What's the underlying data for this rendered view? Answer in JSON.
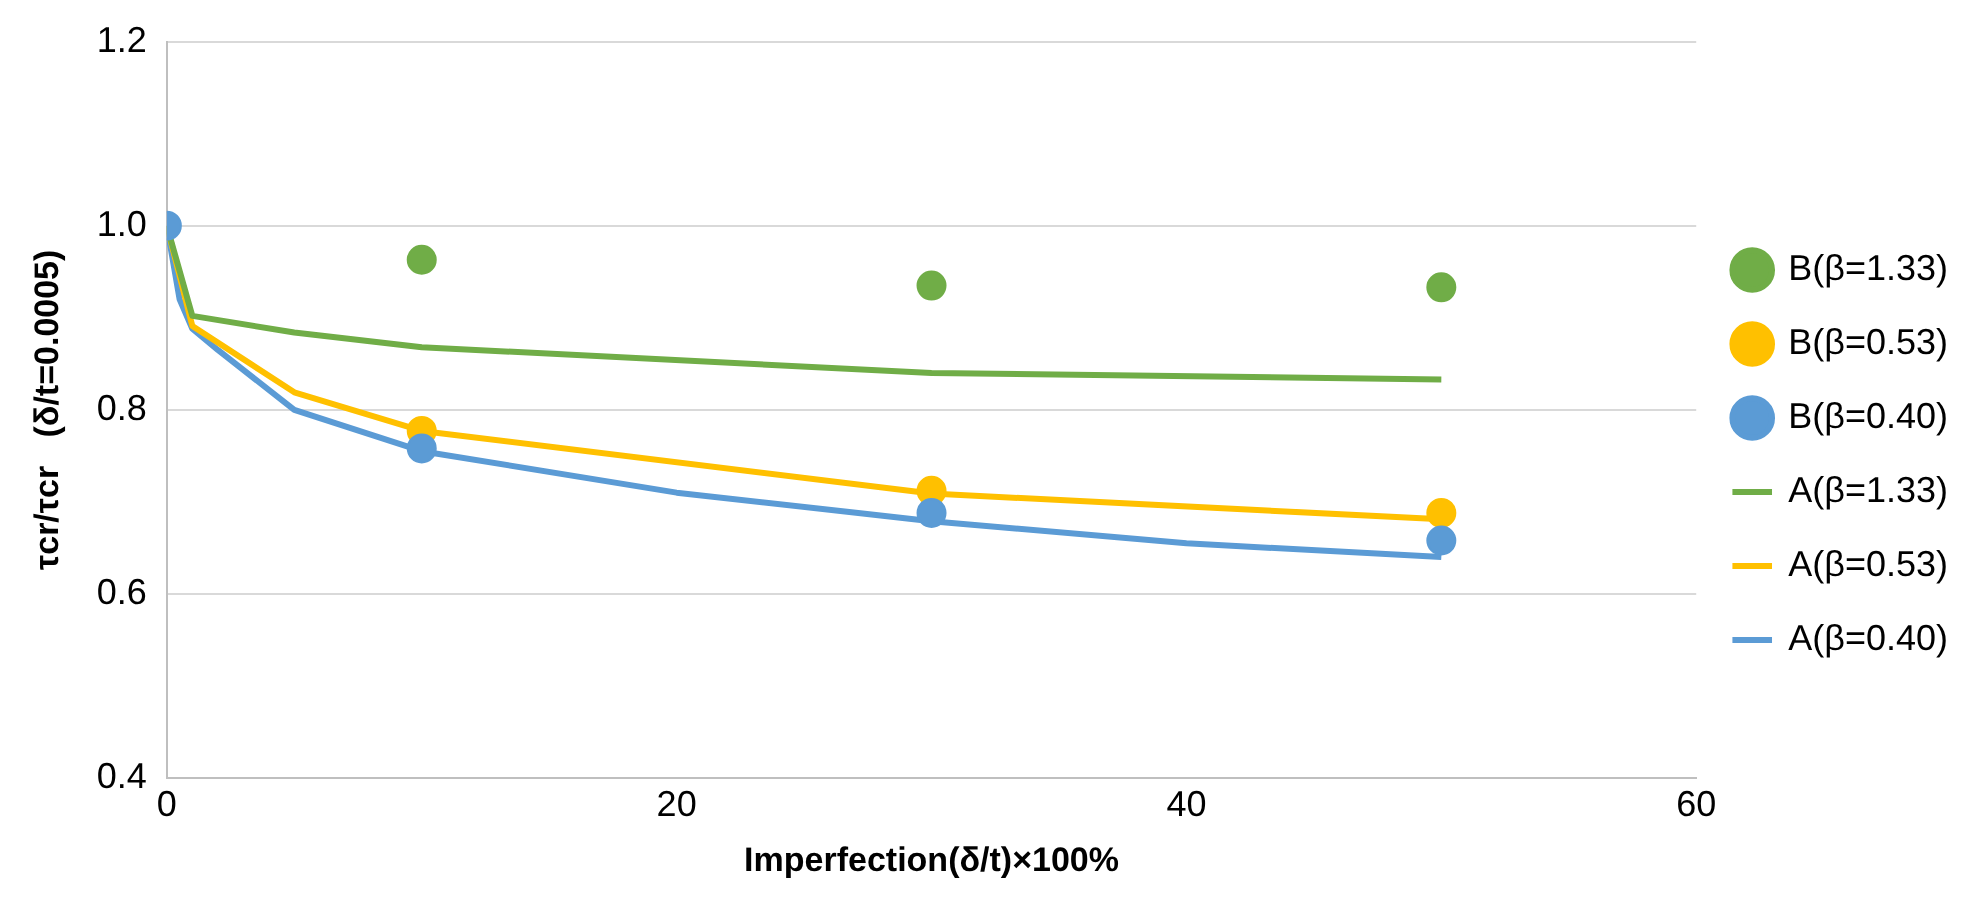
{
  "chart_data": {
    "type": "line",
    "xlabel": "Imperfection(δ/t)×100%",
    "ylabel": "τcr/τcr   (δ/t=0.0005)",
    "xlim": [
      0,
      60
    ],
    "xticks": [
      0,
      20,
      40,
      60
    ],
    "ylim": [
      0.4,
      1.2
    ],
    "yticks": [
      {
        "value": 0.4,
        "label": "0.4"
      },
      {
        "value": 0.6,
        "label": "0.6"
      },
      {
        "value": 0.8,
        "label": "0.8"
      },
      {
        "value": 1.0,
        "label": "1.0"
      },
      {
        "value": 1.2,
        "label": "1.2"
      }
    ],
    "grid": "y",
    "legend": "right",
    "series": [
      {
        "name": "B(β=1.33)",
        "type": "scatter",
        "marker": "circle",
        "color": "#70ad47",
        "x": [
          10,
          30,
          50
        ],
        "values": [
          0.963,
          0.935,
          0.933
        ]
      },
      {
        "name": "B(β=0.53)",
        "type": "scatter",
        "marker": "circle",
        "color": "#ffc000",
        "x": [
          10,
          30,
          50
        ],
        "values": [
          0.777,
          0.712,
          0.688
        ]
      },
      {
        "name": "B(β=0.40)",
        "type": "scatter",
        "marker": "circle",
        "color": "#5b9bd5",
        "x": [
          0,
          10,
          30,
          50
        ],
        "values": [
          1.0,
          0.758,
          0.688,
          0.658
        ]
      },
      {
        "name": "A(β=1.33)",
        "marker": "none",
        "color": "#70ad47",
        "x": [
          0,
          1,
          5,
          10,
          30,
          50
        ],
        "values": [
          1.0,
          0.902,
          0.884,
          0.868,
          0.84,
          0.833
        ]
      },
      {
        "name": "A(β=0.53)",
        "marker": "none",
        "color": "#ffc000",
        "x": [
          0,
          1,
          5,
          10,
          30,
          50
        ],
        "values": [
          1.0,
          0.891,
          0.819,
          0.777,
          0.709,
          0.681
        ]
      },
      {
        "name": "A(β=0.40)",
        "marker": "none",
        "color": "#5b9bd5",
        "x": [
          0,
          0.5,
          1,
          2,
          5,
          10,
          20,
          30,
          40,
          50
        ],
        "values": [
          1.0,
          0.92,
          0.888,
          0.865,
          0.8,
          0.755,
          0.71,
          0.679,
          0.655,
          0.64
        ]
      }
    ]
  }
}
